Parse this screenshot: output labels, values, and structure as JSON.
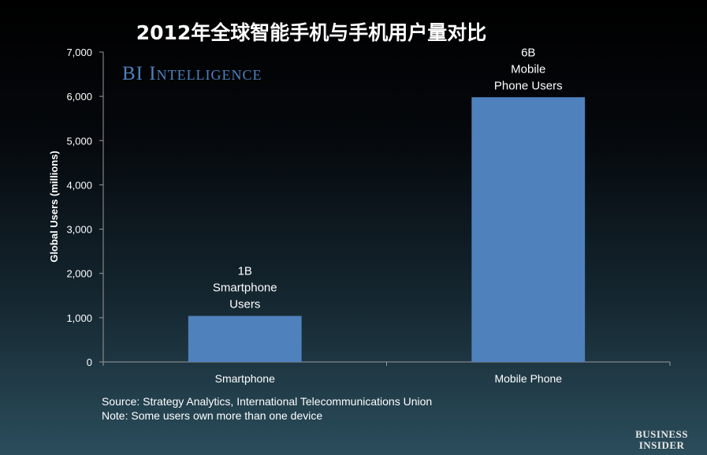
{
  "chart_data": {
    "type": "bar",
    "title": "2012年全球智能手机与手机用户量对比",
    "ylabel": "Global Users (millions)",
    "xlabel": "",
    "ylim": [
      0,
      7000
    ],
    "yticks": [
      0,
      1000,
      2000,
      3000,
      4000,
      5000,
      6000,
      7000
    ],
    "ytick_labels": [
      "0",
      "1,000",
      "2,000",
      "3,000",
      "4,000",
      "5,000",
      "6,000",
      "7,000"
    ],
    "categories": [
      "Smartphone",
      "Mobile Phone"
    ],
    "values": [
      1040,
      5980
    ],
    "data_labels": [
      [
        "1B",
        "Smartphone",
        "Users"
      ],
      [
        "6B",
        "Mobile",
        "Phone Users"
      ]
    ],
    "bar_color": "#4f81bd",
    "grid": false,
    "legend": "none"
  },
  "brand": "BI Intelligence",
  "notes": {
    "source": "Source: Strategy Analytics, International Telecommunications Union",
    "note": "Note: Some users own more than one device"
  },
  "logo": {
    "line1": "BUSINESS",
    "line2": "INSIDER"
  }
}
